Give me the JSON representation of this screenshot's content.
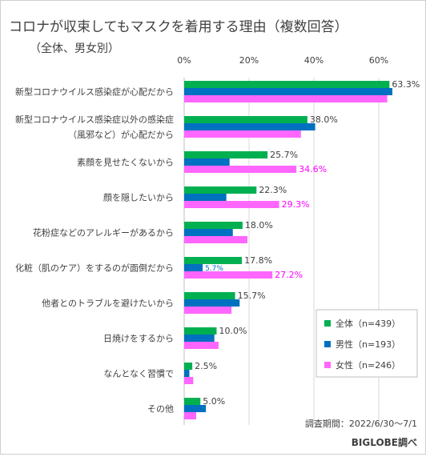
{
  "chart_data": {
    "type": "bar",
    "orientation": "horizontal",
    "title": "コロナが収束してもマスクを着用する理由（複数回答）",
    "subtitle": "（全体、男女別）",
    "categories": [
      [
        "新型コロナウイルス感染症が心配だから"
      ],
      [
        "新型コロナウイルス感染症以外の感染症",
        "（風邪など）が心配だから"
      ],
      [
        "素顔を見せたくないから"
      ],
      [
        "顔を隠したいから"
      ],
      [
        "花粉症などのアレルギーがあるから"
      ],
      [
        "化粧（肌のケア）をするのが面倒だから"
      ],
      [
        "他者とのトラブルを避けたいから"
      ],
      [
        "日焼けをするから"
      ],
      [
        "なんとなく習慣で"
      ],
      [
        "その他"
      ]
    ],
    "series": [
      {
        "name": "全体（n=439）",
        "color": "#00b050",
        "values": [
          63.3,
          38.0,
          25.7,
          22.3,
          18.0,
          17.8,
          15.7,
          10.0,
          2.5,
          5.0
        ]
      },
      {
        "name": "男性（n=193）",
        "color": "#0070c0",
        "values": [
          64.2,
          40.4,
          14.0,
          13.0,
          15.0,
          5.7,
          17.1,
          9.3,
          1.6,
          6.7
        ]
      },
      {
        "name": "女性（n=246）",
        "color": "#ff66ff",
        "values": [
          62.6,
          36.0,
          34.6,
          29.3,
          19.5,
          27.2,
          14.6,
          10.6,
          2.8,
          3.7
        ]
      }
    ],
    "data_labels": [
      [
        "63.3%",
        null,
        null
      ],
      [
        "38.0%",
        null,
        null
      ],
      [
        "25.7%",
        null,
        "34.6%"
      ],
      [
        "22.3%",
        null,
        "29.3%"
      ],
      [
        "18.0%",
        null,
        null
      ],
      [
        "17.8%",
        "5.7%",
        "27.2%"
      ],
      [
        "15.7%",
        null,
        null
      ],
      [
        "10.0%",
        null,
        null
      ],
      [
        "2.5%",
        null,
        null
      ],
      [
        "5.0%",
        null,
        null
      ]
    ],
    "label_colors": [
      "#404040",
      "#0070c0",
      "#ff00ff"
    ],
    "xaxis": {
      "ticks": [
        0,
        20,
        40,
        60
      ],
      "tick_labels": [
        "0%",
        "20%",
        "40%",
        "60%"
      ],
      "range": [
        0,
        70
      ]
    },
    "grid": true,
    "legend_position": "bottom-right"
  },
  "footnote": "調査期間：2022/6/30〜7/1",
  "source": "BIGLOBE調べ"
}
